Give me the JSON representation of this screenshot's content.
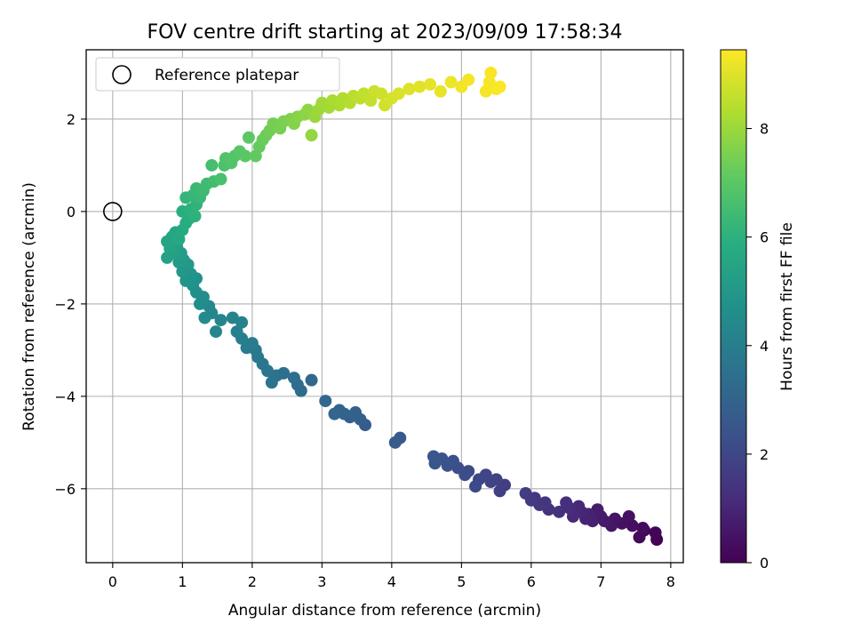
{
  "chart_data": {
    "type": "scatter",
    "title": "FOV centre drift starting at 2023/09/09 17:58:34",
    "xlabel": "Angular distance from reference (arcmin)",
    "ylabel": "Rotation from reference (arcmin)",
    "xlim": [
      -0.38,
      8.18
    ],
    "ylim": [
      -7.6,
      3.5
    ],
    "xticks": [
      0,
      1,
      2,
      3,
      4,
      5,
      6,
      7,
      8
    ],
    "yticks": [
      -6,
      -4,
      -2,
      0,
      2
    ],
    "xtick_labels": [
      "0",
      "1",
      "2",
      "3",
      "4",
      "5",
      "6",
      "7",
      "8"
    ],
    "ytick_labels": [
      "−6",
      "−4",
      "−2",
      "0",
      "2"
    ],
    "grid": true,
    "legend": {
      "placement": "top-left",
      "entries": [
        "Reference platepar"
      ]
    },
    "reference_point": {
      "x": 0,
      "y": 0,
      "label": "Reference platepar"
    },
    "colorbar": {
      "label": "Hours from first FF file",
      "colormap": "viridis",
      "range": [
        0,
        9.45
      ],
      "ticks": [
        0,
        2,
        4,
        6,
        8
      ],
      "tick_labels": [
        "0",
        "2",
        "4",
        "6",
        "8"
      ]
    },
    "points": [
      [
        7.8,
        -7.1,
        0.02
      ],
      [
        7.78,
        -6.95,
        0.08
      ],
      [
        7.62,
        -6.9,
        0.15
      ],
      [
        7.55,
        -7.05,
        0.22
      ],
      [
        7.6,
        -6.85,
        0.28
      ],
      [
        7.45,
        -6.8,
        0.34
      ],
      [
        7.4,
        -6.6,
        0.4
      ],
      [
        7.3,
        -6.75,
        0.46
      ],
      [
        7.2,
        -6.65,
        0.52
      ],
      [
        7.15,
        -6.8,
        0.58
      ],
      [
        7.05,
        -6.7,
        0.64
      ],
      [
        7.0,
        -6.6,
        0.7
      ],
      [
        6.95,
        -6.45,
        0.76
      ],
      [
        6.88,
        -6.7,
        0.82
      ],
      [
        6.82,
        -6.55,
        0.88
      ],
      [
        6.78,
        -6.65,
        0.94
      ],
      [
        6.72,
        -6.5,
        1.0
      ],
      [
        6.68,
        -6.38,
        1.06
      ],
      [
        6.6,
        -6.6,
        1.12
      ],
      [
        6.55,
        -6.42,
        1.18
      ],
      [
        6.5,
        -6.3,
        1.24
      ],
      [
        6.4,
        -6.5,
        1.3
      ],
      [
        6.25,
        -6.45,
        1.36
      ],
      [
        6.2,
        -6.3,
        1.42
      ],
      [
        6.12,
        -6.35,
        1.48
      ],
      [
        6.05,
        -6.2,
        1.54
      ],
      [
        6.0,
        -6.25,
        1.6
      ],
      [
        5.92,
        -6.1,
        1.66
      ],
      [
        5.62,
        -5.92,
        1.72
      ],
      [
        5.55,
        -6.05,
        1.78
      ],
      [
        5.5,
        -5.8,
        1.84
      ],
      [
        5.42,
        -5.85,
        1.9
      ],
      [
        5.35,
        -5.7,
        1.96
      ],
      [
        5.25,
        -5.8,
        2.02
      ],
      [
        5.2,
        -5.95,
        2.08
      ],
      [
        5.1,
        -5.62,
        2.14
      ],
      [
        5.05,
        -5.7,
        2.2
      ],
      [
        4.95,
        -5.55,
        2.26
      ],
      [
        4.88,
        -5.4,
        2.32
      ],
      [
        4.8,
        -5.5,
        2.38
      ],
      [
        4.72,
        -5.35,
        2.44
      ],
      [
        4.62,
        -5.45,
        2.5
      ],
      [
        4.6,
        -5.3,
        2.56
      ],
      [
        4.12,
        -4.9,
        2.62
      ],
      [
        4.05,
        -5.0,
        2.68
      ],
      [
        3.62,
        -4.62,
        2.74
      ],
      [
        3.55,
        -4.5,
        2.8
      ],
      [
        3.48,
        -4.35,
        2.86
      ],
      [
        3.4,
        -4.45,
        2.92
      ],
      [
        3.32,
        -4.38,
        2.98
      ],
      [
        3.25,
        -4.3,
        3.04
      ],
      [
        3.18,
        -4.38,
        3.1
      ],
      [
        3.05,
        -4.1,
        3.16
      ],
      [
        2.85,
        -3.65,
        3.22
      ],
      [
        2.7,
        -3.88,
        3.28
      ],
      [
        2.65,
        -3.75,
        3.34
      ],
      [
        2.6,
        -3.6,
        3.4
      ],
      [
        2.45,
        -3.5,
        3.46
      ],
      [
        2.35,
        -3.55,
        3.52
      ],
      [
        2.28,
        -3.7,
        3.58
      ],
      [
        2.22,
        -3.45,
        3.64
      ],
      [
        2.15,
        -3.3,
        3.7
      ],
      [
        2.08,
        -3.15,
        3.76
      ],
      [
        2.05,
        -3.0,
        3.82
      ],
      [
        2.0,
        -2.85,
        3.88
      ],
      [
        1.92,
        -2.95,
        3.94
      ],
      [
        1.85,
        -2.75,
        4.0
      ],
      [
        1.78,
        -2.6,
        4.06
      ],
      [
        1.85,
        -2.4,
        4.12
      ],
      [
        1.72,
        -2.3,
        4.18
      ],
      [
        1.55,
        -2.35,
        4.24
      ],
      [
        1.48,
        -2.6,
        4.3
      ],
      [
        1.42,
        -2.2,
        4.36
      ],
      [
        1.38,
        -2.05,
        4.42
      ],
      [
        1.32,
        -2.3,
        4.48
      ],
      [
        1.3,
        -1.85,
        4.54
      ],
      [
        1.25,
        -2.0,
        4.6
      ],
      [
        1.2,
        -1.75,
        4.66
      ],
      [
        1.15,
        -1.6,
        4.72
      ],
      [
        1.2,
        -1.45,
        4.78
      ],
      [
        1.12,
        -1.35,
        4.84
      ],
      [
        1.05,
        -1.5,
        4.9
      ],
      [
        1.0,
        -1.3,
        4.96
      ],
      [
        1.08,
        -1.15,
        5.02
      ],
      [
        1.02,
        -1.05,
        5.08
      ],
      [
        0.95,
        -1.1,
        5.14
      ],
      [
        0.98,
        -0.9,
        5.2
      ],
      [
        0.92,
        -0.75,
        5.26
      ],
      [
        0.85,
        -0.9,
        5.32
      ],
      [
        0.78,
        -1.0,
        5.38
      ],
      [
        0.82,
        -0.8,
        5.44
      ],
      [
        0.78,
        -0.65,
        5.5
      ],
      [
        0.85,
        -0.55,
        5.56
      ],
      [
        0.9,
        -0.45,
        5.62
      ],
      [
        0.95,
        -0.6,
        5.68
      ],
      [
        1.0,
        -0.4,
        5.74
      ],
      [
        1.05,
        -0.25,
        5.8
      ],
      [
        1.1,
        -0.15,
        5.86
      ],
      [
        1.0,
        0.0,
        5.92
      ],
      [
        1.12,
        0.05,
        5.98
      ],
      [
        1.18,
        -0.1,
        6.04
      ],
      [
        1.2,
        0.15,
        6.1
      ],
      [
        1.05,
        0.3,
        6.16
      ],
      [
        1.15,
        0.35,
        6.22
      ],
      [
        1.25,
        0.3,
        6.28
      ],
      [
        1.2,
        0.5,
        6.34
      ],
      [
        1.3,
        0.45,
        6.4
      ],
      [
        1.35,
        0.6,
        6.46
      ],
      [
        1.45,
        0.65,
        6.52
      ],
      [
        1.42,
        1.0,
        6.58
      ],
      [
        1.55,
        0.7,
        6.64
      ],
      [
        1.6,
        1.0,
        6.7
      ],
      [
        1.62,
        1.15,
        6.76
      ],
      [
        1.7,
        1.05,
        6.82
      ],
      [
        1.75,
        1.2,
        6.88
      ],
      [
        1.82,
        1.3,
        6.94
      ],
      [
        1.9,
        1.2,
        7.0
      ],
      [
        1.95,
        1.6,
        7.06
      ],
      [
        2.05,
        1.2,
        7.12
      ],
      [
        2.1,
        1.4,
        7.18
      ],
      [
        2.15,
        1.55,
        7.24
      ],
      [
        2.2,
        1.65,
        7.3
      ],
      [
        2.25,
        1.75,
        7.36
      ],
      [
        2.3,
        1.9,
        7.42
      ],
      [
        2.4,
        1.8,
        7.48
      ],
      [
        2.45,
        1.95,
        7.54
      ],
      [
        2.55,
        2.0,
        7.6
      ],
      [
        2.6,
        1.9,
        7.66
      ],
      [
        2.65,
        2.05,
        7.72
      ],
      [
        2.75,
        2.1,
        7.78
      ],
      [
        2.8,
        2.2,
        7.84
      ],
      [
        2.85,
        1.65,
        7.9
      ],
      [
        2.9,
        2.05,
        7.96
      ],
      [
        2.95,
        2.2,
        8.02
      ],
      [
        3.0,
        2.35,
        8.08
      ],
      [
        3.1,
        2.25,
        8.14
      ],
      [
        3.15,
        2.4,
        8.2
      ],
      [
        3.25,
        2.3,
        8.26
      ],
      [
        3.3,
        2.45,
        8.32
      ],
      [
        3.4,
        2.35,
        8.38
      ],
      [
        3.45,
        2.5,
        8.44
      ],
      [
        3.55,
        2.45,
        8.5
      ],
      [
        3.6,
        2.55,
        8.56
      ],
      [
        3.7,
        2.4,
        8.62
      ],
      [
        3.75,
        2.6,
        8.68
      ],
      [
        3.85,
        2.55,
        8.74
      ],
      [
        3.9,
        2.3,
        8.8
      ],
      [
        4.0,
        2.45,
        8.86
      ],
      [
        4.1,
        2.55,
        8.92
      ],
      [
        4.25,
        2.65,
        8.98
      ],
      [
        4.4,
        2.7,
        9.04
      ],
      [
        4.55,
        2.75,
        9.1
      ],
      [
        4.7,
        2.6,
        9.16
      ],
      [
        4.85,
        2.8,
        9.22
      ],
      [
        5.0,
        2.7,
        9.26
      ],
      [
        5.1,
        2.85,
        9.3
      ],
      [
        5.35,
        2.6,
        9.33
      ],
      [
        5.4,
        2.8,
        9.36
      ],
      [
        5.42,
        3.0,
        9.38
      ],
      [
        5.5,
        2.65,
        9.4
      ],
      [
        5.55,
        2.7,
        9.42
      ]
    ]
  }
}
